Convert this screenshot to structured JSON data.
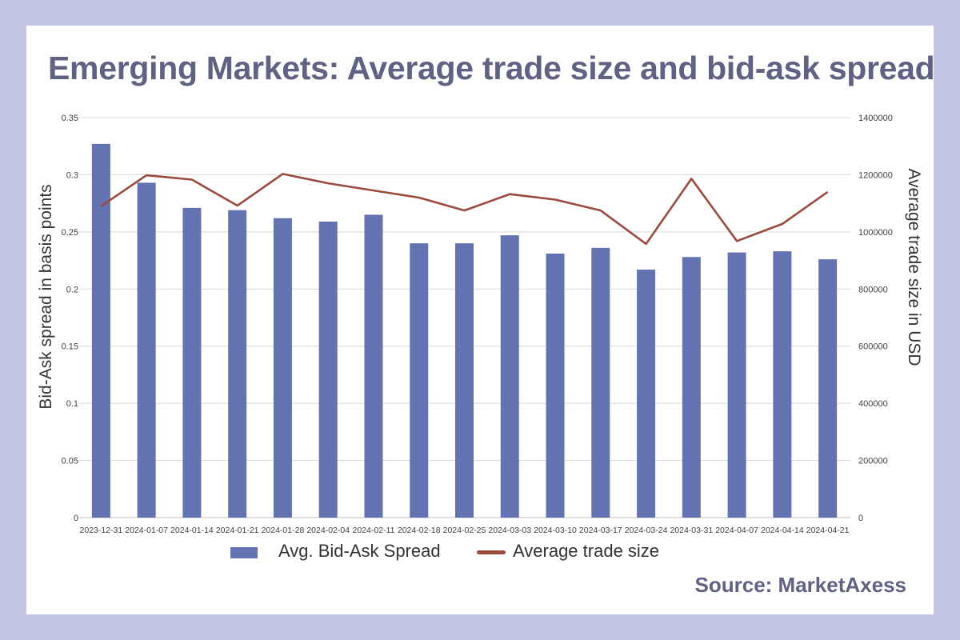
{
  "title": "Emerging Markets: Average trade size and bid-ask spread",
  "source": "Source: MarketAxess",
  "colors": {
    "page_background": "#c0c6e3",
    "card": "#ffffff",
    "bars": "#6373b1",
    "line": "#9b4a3e",
    "title_text": "#5f6283",
    "grid": "#d9d9d9"
  },
  "chart_data": {
    "type": "bar",
    "title": "Emerging Markets: Average trade size and bid-ask spread",
    "xlabel": "",
    "ylabel": "Bid-Ask spread in basis points",
    "ylabel_right": "Average trade size in USD",
    "ylim": [
      0,
      0.35
    ],
    "ylim_right": [
      0,
      1400000
    ],
    "yticks": [
      "0",
      "0.05",
      "0.1",
      "0.15",
      "0.2",
      "0.25",
      "0.3",
      "0.35"
    ],
    "yticks_right": [
      "0",
      "200000",
      "400000",
      "600000",
      "800000",
      "1000000",
      "1200000",
      "1400000"
    ],
    "grid": true,
    "legend_position": "bottom",
    "categories": [
      "2023-12-31",
      "2024-01-07",
      "2024-01-14",
      "2024-01-21",
      "2024-01-28",
      "2024-02-04",
      "2024-02-11",
      "2024-02-18",
      "2024-02-25",
      "2024-03-03",
      "2024-03-10",
      "2024-03-17",
      "2024-03-24",
      "2024-03-31",
      "2024-04-07",
      "2024-04-14",
      "2024-04-21"
    ],
    "series": [
      {
        "name": "Avg. Bid-Ask Spread",
        "type": "bar",
        "axis": "left",
        "values": [
          0.327,
          0.293,
          0.271,
          0.269,
          0.262,
          0.259,
          0.265,
          0.24,
          0.24,
          0.247,
          0.231,
          0.236,
          0.217,
          0.228,
          0.232,
          0.233,
          0.226
        ]
      },
      {
        "name": "Average trade size",
        "type": "line",
        "axis": "right",
        "values": [
          1090000,
          1198000,
          1183000,
          1092000,
          1203000,
          1170000,
          1145000,
          1120000,
          1075000,
          1132000,
          1113000,
          1075000,
          958000,
          1186000,
          968000,
          1028000,
          1140000
        ]
      }
    ]
  }
}
